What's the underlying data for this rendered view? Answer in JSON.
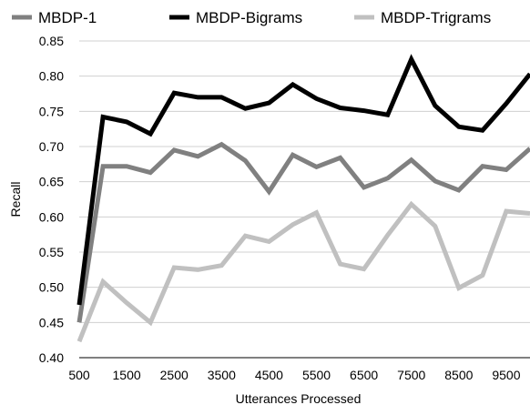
{
  "chart_data": {
    "type": "line",
    "xlabel": "Utterances Processed",
    "ylabel": "Recall",
    "xlim": [
      500,
      10000
    ],
    "ylim": [
      0.4,
      0.85
    ],
    "xticks": [
      "500",
      "1500",
      "2500",
      "3500",
      "4500",
      "5500",
      "6500",
      "7500",
      "8500",
      "9500"
    ],
    "yticks": [
      "0.40",
      "0.45",
      "0.50",
      "0.55",
      "0.60",
      "0.65",
      "0.70",
      "0.75",
      "0.80",
      "0.85"
    ],
    "grid": "horizontal",
    "legend_position": "top",
    "x": [
      500,
      1000,
      1500,
      2000,
      2500,
      3000,
      3500,
      4000,
      4500,
      5000,
      5500,
      6000,
      6500,
      7000,
      7500,
      8000,
      8500,
      9000,
      9500,
      10000
    ],
    "series": [
      {
        "name": "MBDP-1",
        "color": "#808080",
        "values": [
          0.45,
          0.672,
          0.672,
          0.663,
          0.695,
          0.686,
          0.703,
          0.68,
          0.636,
          0.688,
          0.671,
          0.684,
          0.642,
          0.655,
          0.681,
          0.651,
          0.638,
          0.672,
          0.667,
          0.697
        ]
      },
      {
        "name": "MBDP-Bigrams",
        "color": "#000000",
        "values": [
          0.475,
          0.742,
          0.735,
          0.718,
          0.776,
          0.77,
          0.77,
          0.754,
          0.762,
          0.788,
          0.768,
          0.755,
          0.751,
          0.745,
          0.824,
          0.758,
          0.728,
          0.723,
          0.761,
          0.803
        ]
      },
      {
        "name": "MBDP-Trigrams",
        "color": "#c0c0c0",
        "values": [
          0.423,
          0.508,
          0.478,
          0.45,
          0.528,
          0.525,
          0.531,
          0.573,
          0.565,
          0.589,
          0.606,
          0.533,
          0.526,
          0.574,
          0.618,
          0.587,
          0.499,
          0.517,
          0.608,
          0.605
        ]
      }
    ]
  }
}
